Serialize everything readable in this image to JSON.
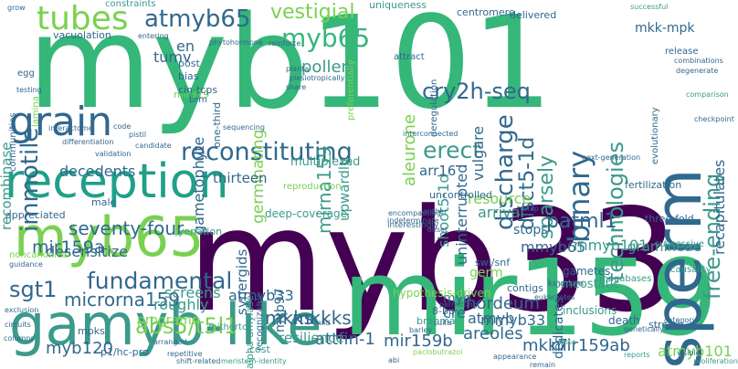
{
  "words": [
    {
      "text": "myb33",
      "color": "#440154"
    },
    {
      "text": "myb101",
      "color": "#35b779"
    },
    {
      "text": "mir159",
      "color": "#35b779"
    },
    {
      "text": "gamyb-like",
      "color": "#3b9a8b"
    },
    {
      "text": "sperm",
      "color": "#31688e"
    },
    {
      "text": "myb65",
      "color": "#7ad151"
    },
    {
      "text": "reception",
      "color": "#1fa088"
    },
    {
      "text": "grain",
      "color": "#31688e"
    },
    {
      "text": "tubes",
      "color": "#7ad151"
    },
    {
      "text": "atmyb65",
      "color": "#31688e"
    },
    {
      "text": "reconstituting",
      "color": "#31688e"
    },
    {
      "text": "binary",
      "color": "#31688e"
    },
    {
      "text": "technologies",
      "color": "#3b9a8b"
    },
    {
      "text": "immotile",
      "color": "#31688e"
    },
    {
      "text": "cry2h-seq",
      "color": "#31688e"
    },
    {
      "text": "discharge",
      "color": "#31688e"
    },
    {
      "text": "fundamental",
      "color": "#31688e"
    },
    {
      "text": "free-ending",
      "color": "#3b9a8b"
    },
    {
      "text": "vestigial",
      "color": "#7ad151"
    },
    {
      "text": "erect",
      "color": "#3b9a8b"
    },
    {
      "text": "sparsely",
      "color": "#3b9a8b"
    },
    {
      "text": "disct5-1d",
      "color": "#31688e"
    },
    {
      "text": "myb65",
      "color": "#35b779"
    },
    {
      "text": "abs5/t5l1",
      "color": "#7ad151"
    },
    {
      "text": "mir159a",
      "color": "#31688e"
    },
    {
      "text": "sgt1",
      "color": "#31688e"
    },
    {
      "text": "microrna159",
      "color": "#31688e"
    },
    {
      "text": "seventy-four",
      "color": "#31688e"
    },
    {
      "text": "patml1",
      "color": "#31688e"
    },
    {
      "text": "mirna159",
      "color": "#3b9a8b"
    },
    {
      "text": "pollen",
      "color": "#3b9a8b"
    },
    {
      "text": "mkk-mpk",
      "color": "#31688e"
    },
    {
      "text": "recapitulates",
      "color": "#31688e"
    },
    {
      "text": "aleurone",
      "color": "#7ad151"
    },
    {
      "text": "shoot5-1d",
      "color": "#3b9a8b"
    },
    {
      "text": "uninterrupted",
      "color": "#31688e"
    },
    {
      "text": "vulgare",
      "color": "#31688e"
    },
    {
      "text": "tumv",
      "color": "#31688e"
    },
    {
      "text": "en",
      "color": "#31688e"
    },
    {
      "text": "germinating",
      "color": "#7ad151"
    },
    {
      "text": "gametophyte",
      "color": "#31688e"
    },
    {
      "text": "recombinase",
      "color": "#3b9a8b"
    },
    {
      "text": "decedents",
      "color": "#31688e"
    },
    {
      "text": "desensitize",
      "color": "#31688e"
    },
    {
      "text": "thirteen",
      "color": "#31688e"
    },
    {
      "text": "upwardly",
      "color": "#3b9a8b"
    },
    {
      "text": "arr16",
      "color": "#31688e"
    },
    {
      "text": "resource",
      "color": "#7ad151"
    },
    {
      "text": "arrival",
      "color": "#3b9a8b"
    },
    {
      "text": "stops",
      "color": "#31688e"
    },
    {
      "text": "mmyb65",
      "color": "#31688e"
    },
    {
      "text": "mmyb101",
      "color": "#3b9a8b"
    },
    {
      "text": "synergids",
      "color": "#31688e"
    },
    {
      "text": "mkks",
      "color": "#31688e"
    },
    {
      "text": "mkkks",
      "color": "#31688e"
    },
    {
      "text": "atmyb33",
      "color": "#31688e"
    },
    {
      "text": "myb97",
      "color": "#31688e"
    },
    {
      "text": "screens",
      "color": "#3b9a8b"
    },
    {
      "text": "attfin-1",
      "color": "#31688e"
    },
    {
      "text": "mir159b",
      "color": "#31688e"
    },
    {
      "text": "mir159ab",
      "color": "#31688e"
    },
    {
      "text": "mkk7",
      "color": "#31688e"
    },
    {
      "text": "myb120",
      "color": "#31688e"
    },
    {
      "text": "hordeum",
      "color": "#31688e"
    },
    {
      "text": "atmyb",
      "color": "#31688e"
    },
    {
      "text": "mmyb33",
      "color": "#31688e"
    },
    {
      "text": "areoles",
      "color": "#31688e"
    },
    {
      "text": "gramineae",
      "color": "#3b9a8b"
    },
    {
      "text": "atmyb101",
      "color": "#7ad151"
    },
    {
      "text": "dedicates",
      "color": "#31688e"
    },
    {
      "text": "myb",
      "color": "#31688e"
    },
    {
      "text": "resilience",
      "color": "#3b9a8b"
    },
    {
      "text": "germ",
      "color": "#7ad151"
    },
    {
      "text": "roughly",
      "color": "#3b9a8b"
    },
    {
      "text": "programs",
      "color": "#7ad151"
    },
    {
      "text": "cre",
      "color": "#31688e"
    },
    {
      "text": "multiplexed",
      "color": "#3b9a8b"
    },
    {
      "text": "male",
      "color": "#31688e"
    },
    {
      "text": "vacuolation",
      "color": "#31688e"
    },
    {
      "text": "mir319",
      "color": "#7ad151"
    },
    {
      "text": "post",
      "color": "#31688e"
    },
    {
      "text": "bias",
      "color": "#31688e"
    },
    {
      "text": "cin-tcps",
      "color": "#31688e"
    },
    {
      "text": "constraints",
      "color": "#3b9a8b"
    },
    {
      "text": "uniqueness",
      "color": "#3b9a8b"
    },
    {
      "text": "centromere",
      "color": "#31688e"
    },
    {
      "text": "delivered",
      "color": "#31688e"
    },
    {
      "text": "release",
      "color": "#31688e"
    },
    {
      "text": "fertilization",
      "color": "#31688e"
    },
    {
      "text": "three-fold",
      "color": "#31688e"
    },
    {
      "text": "successive",
      "color": "#3b9a8b"
    },
    {
      "text": "causality",
      "color": "#3b9a8b"
    },
    {
      "text": "megabases",
      "color": "#3b9a8b"
    },
    {
      "text": "gametes",
      "color": "#31688e"
    },
    {
      "text": "kingdom",
      "color": "#31688e"
    },
    {
      "text": "swi/snf",
      "color": "#31688e"
    },
    {
      "text": "inclusions",
      "color": "#3b9a8b"
    },
    {
      "text": "homeostatic",
      "color": "#3b9a8b"
    },
    {
      "text": "hypothesis-driven",
      "color": "#7ad151"
    },
    {
      "text": "death",
      "color": "#31688e"
    },
    {
      "text": "stretch",
      "color": "#31688e"
    },
    {
      "text": "brahma",
      "color": "#3b9a8b"
    },
    {
      "text": "8-bp",
      "color": "#31688e"
    },
    {
      "text": "contigs",
      "color": "#31688e"
    },
    {
      "text": "one-third",
      "color": "#31688e"
    },
    {
      "text": "appreciated",
      "color": "#31688e"
    },
    {
      "text": "reproduction",
      "color": "#7ad151"
    },
    {
      "text": "deep-coverage",
      "color": "#3b9a8b"
    },
    {
      "text": "uncontrolled",
      "color": "#31688e"
    },
    {
      "text": "alpha-amylase",
      "color": "#3b9a8b"
    },
    {
      "text": "recognizable",
      "color": "#31688e"
    },
    {
      "text": "mpks",
      "color": "#31688e"
    },
    {
      "text": "mitherto",
      "color": "#3b9a8b"
    },
    {
      "text": "p1/hc-pro",
      "color": "#31688e"
    },
    {
      "text": "cost",
      "color": "#3b9a8b"
    },
    {
      "text": "noncanonical",
      "color": "#7ad151"
    },
    {
      "text": "yenation",
      "color": "#3b9a8b"
    },
    {
      "text": "brm",
      "color": "#31688e"
    },
    {
      "text": "communities",
      "color": "#31688e"
    },
    {
      "text": "egg",
      "color": "#31688e"
    },
    {
      "text": "lamina",
      "color": "#7ad151"
    },
    {
      "text": "grow",
      "color": "#31688e"
    },
    {
      "text": "phytohormone",
      "color": "#31688e"
    },
    {
      "text": "evolutionary",
      "color": "#31688e"
    },
    {
      "text": "successful",
      "color": "#3b9a8b"
    },
    {
      "text": "interestingly",
      "color": "#31688e"
    },
    {
      "text": "deregulation",
      "color": "#31688e"
    },
    {
      "text": "attract",
      "color": "#31688e"
    },
    {
      "text": "visible",
      "color": "#31688e"
    },
    {
      "text": "paclobutrazol",
      "color": "#7ad151"
    },
    {
      "text": "meristem-identity",
      "color": "#3b9a8b"
    },
    {
      "text": "remain",
      "color": "#31688e"
    },
    {
      "text": "fuse",
      "color": "#3b9a8b"
    },
    {
      "text": "appearance",
      "color": "#31688e"
    },
    {
      "text": "proliferation",
      "color": "#3b9a8b"
    },
    {
      "text": "reports",
      "color": "#3b9a8b"
    },
    {
      "text": "category",
      "color": "#31688e"
    },
    {
      "text": "genetically",
      "color": "#31688e"
    },
    {
      "text": "interactome",
      "color": "#31688e"
    },
    {
      "text": "differentiation",
      "color": "#31688e"
    },
    {
      "text": "validation",
      "color": "#31688e"
    },
    {
      "text": "pistil",
      "color": "#31688e"
    },
    {
      "text": "candidate",
      "color": "#31688e"
    },
    {
      "text": "code",
      "color": "#31688e"
    },
    {
      "text": "guidance",
      "color": "#31688e"
    },
    {
      "text": "encompassing",
      "color": "#31688e"
    },
    {
      "text": "indeterminate",
      "color": "#31688e"
    },
    {
      "text": "turnip",
      "color": "#31688e"
    },
    {
      "text": "degenerate",
      "color": "#31688e"
    },
    {
      "text": "comparison",
      "color": "#3b9a8b"
    },
    {
      "text": "checkpoint",
      "color": "#31688e"
    },
    {
      "text": "combinations",
      "color": "#31688e"
    },
    {
      "text": "plesiotropically",
      "color": "#31688e"
    },
    {
      "text": "planta",
      "color": "#31688e"
    },
    {
      "text": "share",
      "color": "#31688e"
    },
    {
      "text": "preferentially",
      "color": "#7ad151"
    },
    {
      "text": "entering",
      "color": "#31688e"
    },
    {
      "text": "testing",
      "color": "#31688e"
    },
    {
      "text": "sequencing",
      "color": "#31688e"
    },
    {
      "text": "next-generation",
      "color": "#31688e"
    },
    {
      "text": "permitting",
      "color": "#31688e"
    },
    {
      "text": "mild",
      "color": "#31688e"
    },
    {
      "text": "abi",
      "color": "#31688e"
    },
    {
      "text": "repetitive",
      "color": "#31688e"
    },
    {
      "text": "circuits",
      "color": "#31688e"
    },
    {
      "text": "columns",
      "color": "#31688e"
    },
    {
      "text": "exclusion",
      "color": "#31688e"
    },
    {
      "text": "shift-related",
      "color": "#31688e"
    },
    {
      "text": "reinforce",
      "color": "#31688e"
    },
    {
      "text": "interconnected",
      "color": "#31688e"
    },
    {
      "text": "anther",
      "color": "#31688e"
    },
    {
      "text": "onset",
      "color": "#31688e"
    },
    {
      "text": "barley",
      "color": "#31688e"
    },
    {
      "text": "suite",
      "color": "#31688e"
    },
    {
      "text": "eukaryotes",
      "color": "#31688e"
    },
    {
      "text": "arranged",
      "color": "#31688e"
    }
  ]
}
